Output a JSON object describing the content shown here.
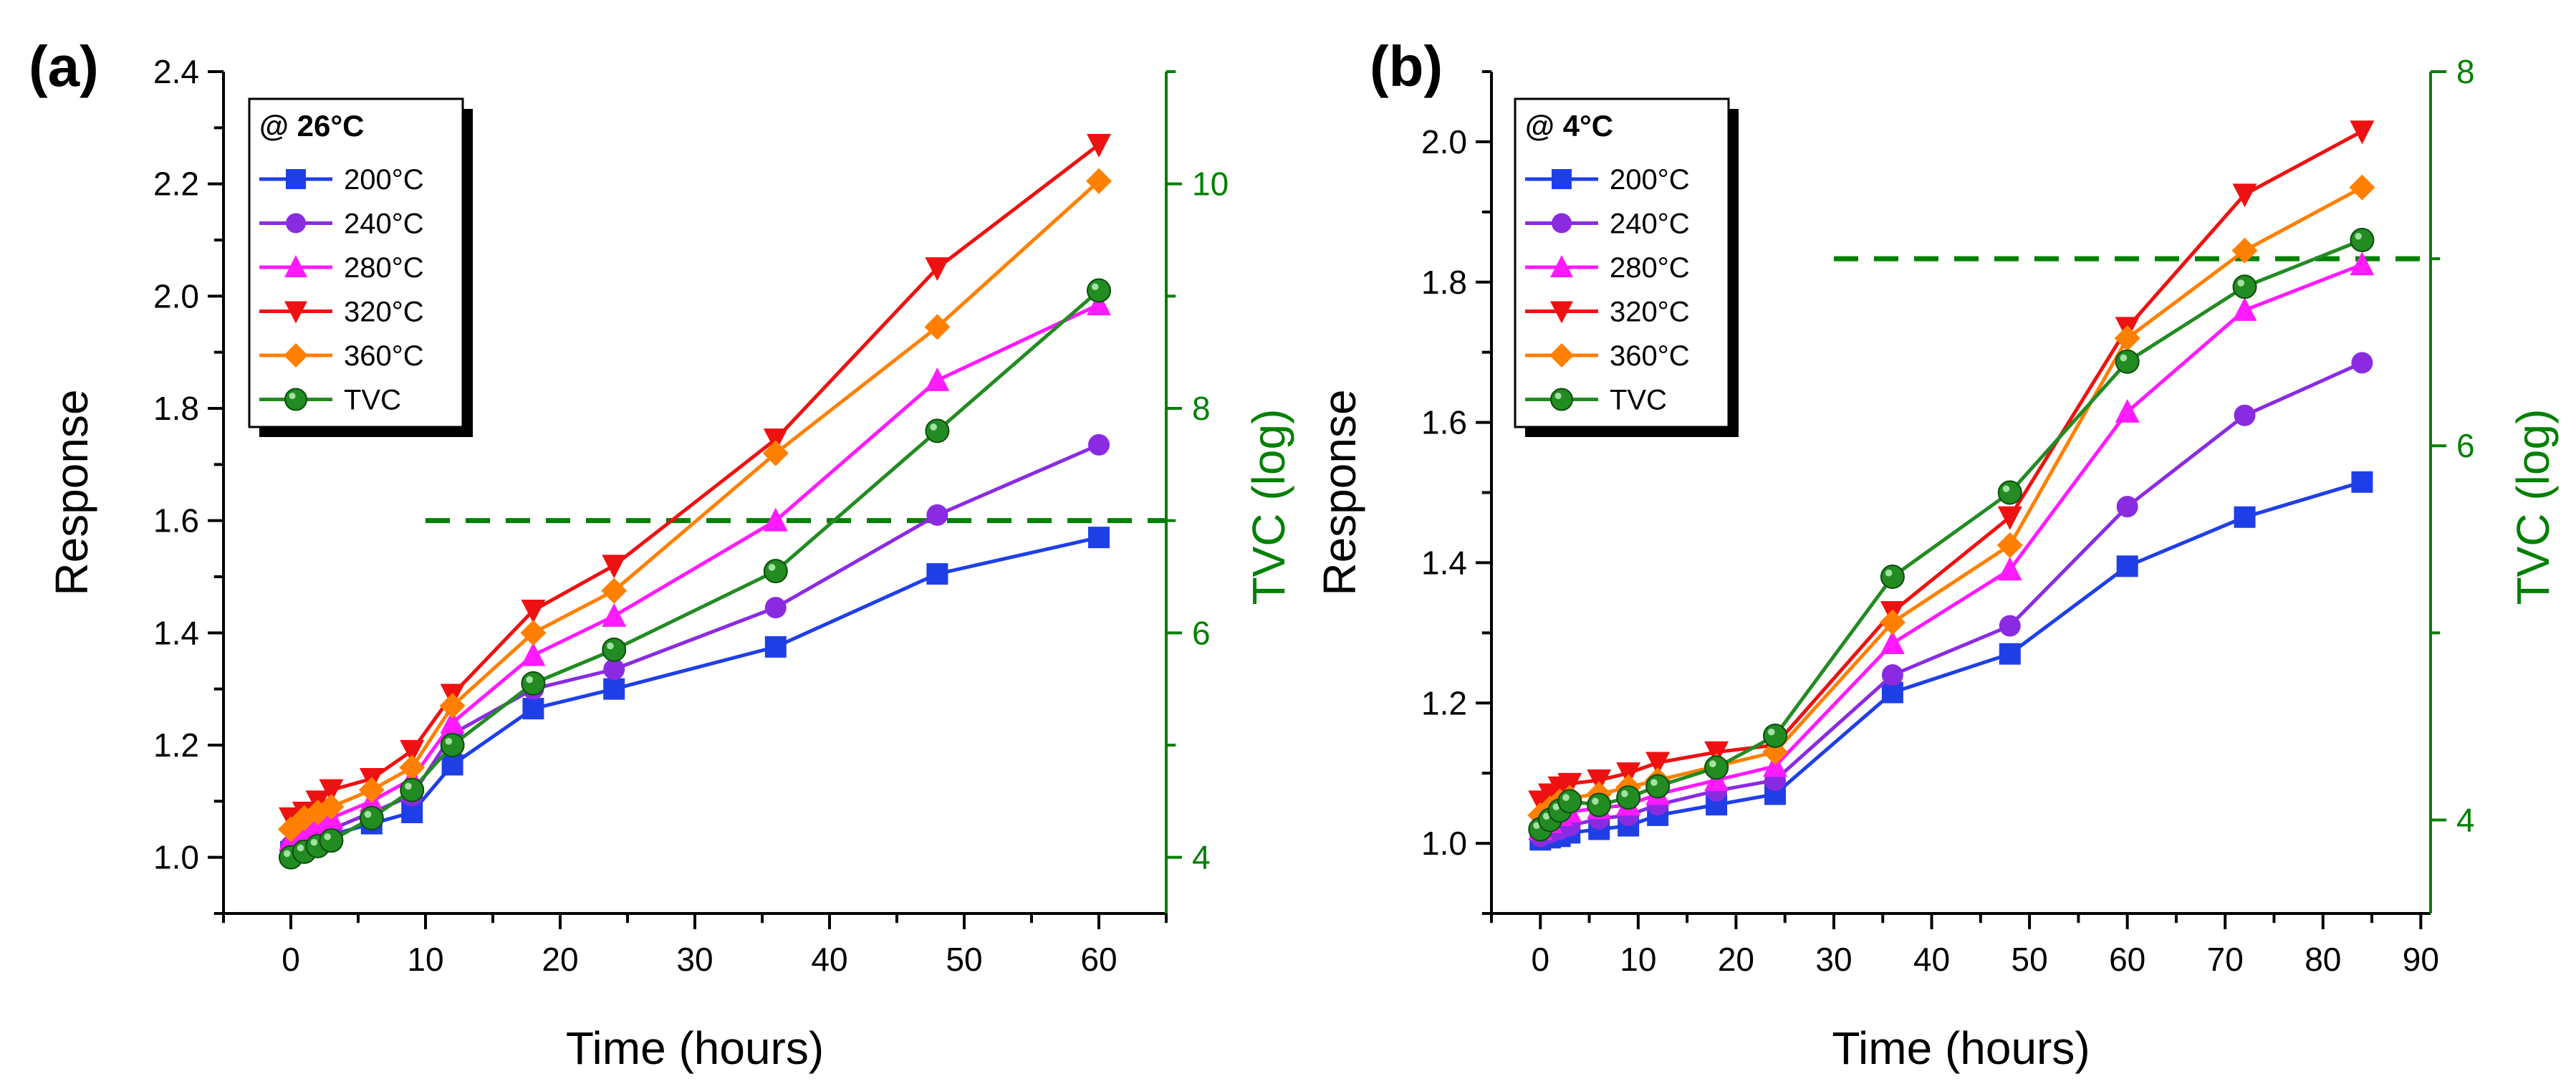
{
  "chart_data": [
    {
      "type": "line",
      "panel_label": "(a)",
      "legend_title": "@ 26°C",
      "xlabel": "Time (hours)",
      "ylabel": "Response",
      "y2label": "TVC (log)",
      "xlim": [
        -5,
        65
      ],
      "ylim": [
        0.9,
        2.4
      ],
      "y2lim": [
        3.5,
        11
      ],
      "xticks": [
        0,
        10,
        20,
        30,
        40,
        50,
        60
      ],
      "yticks": [
        1.0,
        1.2,
        1.4,
        1.6,
        1.8,
        2.0,
        2.2,
        2.4
      ],
      "y2ticks": [
        4,
        6,
        8,
        10
      ],
      "threshold": {
        "y2": 7,
        "x_start": 10,
        "x_end": 65
      },
      "x": [
        0,
        1,
        2,
        3,
        6,
        9,
        12,
        18,
        24,
        36,
        48,
        60
      ],
      "series": [
        {
          "name": "200°C",
          "color": "#1f3fe6",
          "marker": "square",
          "values": [
            1.01,
            1.02,
            1.03,
            1.04,
            1.06,
            1.08,
            1.165,
            1.265,
            1.3,
            1.375,
            1.505,
            1.57
          ]
        },
        {
          "name": "240°C",
          "color": "#8a2be2",
          "marker": "circle",
          "values": [
            1.02,
            1.03,
            1.04,
            1.05,
            1.08,
            1.11,
            1.22,
            1.3,
            1.335,
            1.445,
            1.61,
            1.735
          ]
        },
        {
          "name": "280°C",
          "color": "#ff1aff",
          "marker": "triangle-up",
          "values": [
            1.03,
            1.05,
            1.06,
            1.07,
            1.1,
            1.14,
            1.24,
            1.36,
            1.43,
            1.6,
            1.85,
            1.985
          ]
        },
        {
          "name": "320°C",
          "color": "#ee1111",
          "marker": "triangle-down",
          "values": [
            1.07,
            1.08,
            1.1,
            1.12,
            1.14,
            1.19,
            1.29,
            1.44,
            1.52,
            1.745,
            2.05,
            2.27
          ]
        },
        {
          "name": "360°C",
          "color": "#ff8000",
          "marker": "diamond",
          "values": [
            1.05,
            1.07,
            1.08,
            1.09,
            1.12,
            1.16,
            1.27,
            1.4,
            1.475,
            1.72,
            1.945,
            2.205
          ]
        }
      ],
      "tvc": {
        "name": "TVC",
        "color": "#228b22",
        "marker": "sphere",
        "axis": "y2",
        "values": [
          4.0,
          4.05,
          4.1,
          4.15,
          4.35,
          4.6,
          5.0,
          5.55,
          5.85,
          6.55,
          7.8,
          9.05
        ]
      }
    },
    {
      "type": "line",
      "panel_label": "(b)",
      "legend_title": "@ 4°C",
      "xlabel": "Time (hours)",
      "ylabel": "Response",
      "y2label": "TVC (log)",
      "xlim": [
        -5,
        91
      ],
      "ylim": [
        0.9,
        2.1
      ],
      "y2lim": [
        3.5,
        8
      ],
      "xticks": [
        0,
        10,
        20,
        30,
        40,
        50,
        60,
        70,
        80,
        90
      ],
      "yticks": [
        1.0,
        1.2,
        1.4,
        1.6,
        1.8,
        2.0
      ],
      "y2ticks": [
        4,
        6,
        8
      ],
      "threshold": {
        "y2": 7,
        "x_start": 30,
        "x_end": 91
      },
      "x": [
        0,
        1,
        2,
        3,
        6,
        9,
        12,
        18,
        24,
        36,
        48,
        60,
        72,
        84
      ],
      "series": [
        {
          "name": "200°C",
          "color": "#1f3fe6",
          "marker": "square",
          "values": [
            1.005,
            1.008,
            1.01,
            1.015,
            1.02,
            1.025,
            1.04,
            1.055,
            1.07,
            1.215,
            1.27,
            1.395,
            1.465,
            1.515
          ]
        },
        {
          "name": "240°C",
          "color": "#8a2be2",
          "marker": "circle",
          "values": [
            1.01,
            1.015,
            1.02,
            1.025,
            1.035,
            1.04,
            1.055,
            1.075,
            1.09,
            1.24,
            1.31,
            1.48,
            1.61,
            1.685
          ]
        },
        {
          "name": "280°C",
          "color": "#ff1aff",
          "marker": "triangle-up",
          "values": [
            1.02,
            1.03,
            1.04,
            1.045,
            1.05,
            1.055,
            1.07,
            1.09,
            1.11,
            1.285,
            1.39,
            1.615,
            1.76,
            1.825
          ]
        },
        {
          "name": "320°C",
          "color": "#ee1111",
          "marker": "triangle-down",
          "values": [
            1.06,
            1.07,
            1.08,
            1.085,
            1.09,
            1.1,
            1.115,
            1.13,
            1.14,
            1.33,
            1.465,
            1.735,
            1.925,
            2.015
          ]
        },
        {
          "name": "360°C",
          "color": "#ff8000",
          "marker": "diamond",
          "values": [
            1.04,
            1.05,
            1.06,
            1.065,
            1.07,
            1.08,
            1.09,
            1.11,
            1.13,
            1.315,
            1.425,
            1.72,
            1.845,
            1.935
          ]
        }
      ],
      "tvc": {
        "name": "TVC",
        "color": "#228b22",
        "marker": "sphere",
        "axis": "y2",
        "values": [
          3.95,
          4.0,
          4.05,
          4.1,
          4.08,
          4.12,
          4.18,
          4.28,
          4.45,
          5.3,
          5.75,
          6.45,
          6.85,
          7.1
        ]
      }
    }
  ]
}
